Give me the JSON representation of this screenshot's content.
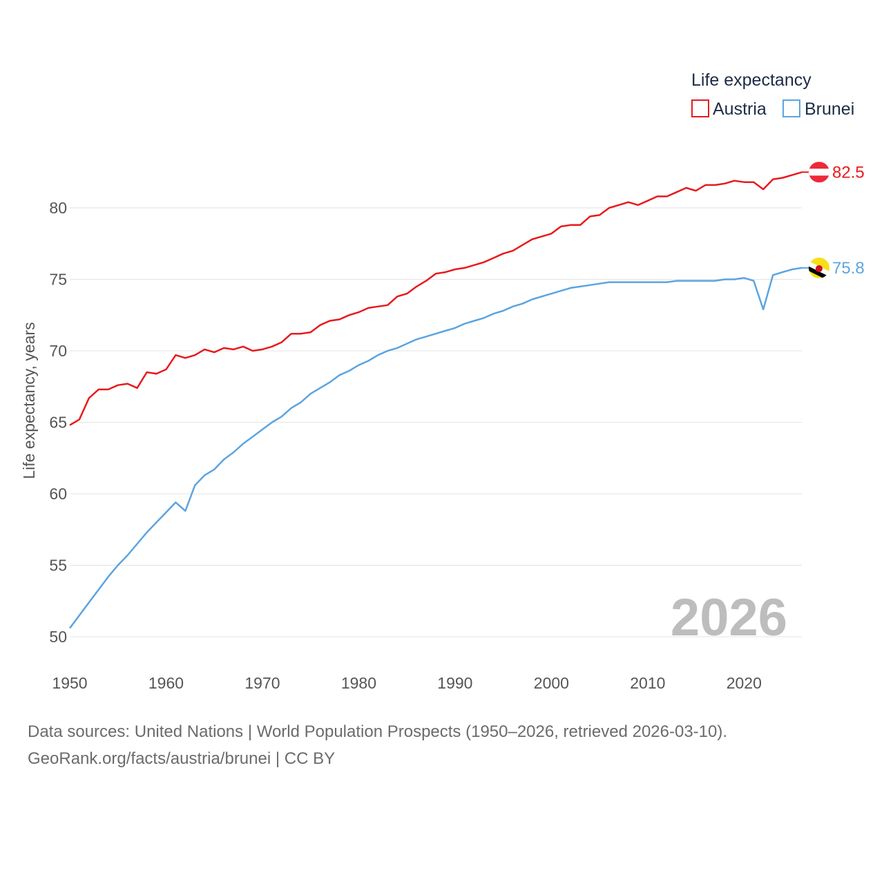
{
  "chart_data": {
    "type": "line",
    "title": "Life expectancy",
    "ylabel": "Life expectancy, years",
    "xlabel": "",
    "xlim": [
      1950,
      2026
    ],
    "ylim": [
      50,
      80
    ],
    "x_ticks": [
      1950,
      1960,
      1970,
      1980,
      1990,
      2000,
      2010,
      2020
    ],
    "y_ticks": [
      50,
      55,
      60,
      65,
      70,
      75,
      80
    ],
    "grid": true,
    "legend_position": "top-right",
    "current_year": "2026",
    "x": [
      1950,
      1951,
      1952,
      1953,
      1954,
      1955,
      1956,
      1957,
      1958,
      1959,
      1960,
      1961,
      1962,
      1963,
      1964,
      1965,
      1966,
      1967,
      1968,
      1969,
      1970,
      1971,
      1972,
      1973,
      1974,
      1975,
      1976,
      1977,
      1978,
      1979,
      1980,
      1981,
      1982,
      1983,
      1984,
      1985,
      1986,
      1987,
      1988,
      1989,
      1990,
      1991,
      1992,
      1993,
      1994,
      1995,
      1996,
      1997,
      1998,
      1999,
      2000,
      2001,
      2002,
      2003,
      2004,
      2005,
      2006,
      2007,
      2008,
      2009,
      2010,
      2011,
      2012,
      2013,
      2014,
      2015,
      2016,
      2017,
      2018,
      2019,
      2020,
      2021,
      2022,
      2023,
      2024,
      2025,
      2026
    ],
    "series": [
      {
        "name": "Austria",
        "color": "#e8191d",
        "end_label": "82.5",
        "flag": "austria-flag",
        "values": [
          64.8,
          65.2,
          66.7,
          67.3,
          67.3,
          67.6,
          67.7,
          67.4,
          68.5,
          68.4,
          68.7,
          69.7,
          69.5,
          69.7,
          70.1,
          69.9,
          70.2,
          70.1,
          70.3,
          70.0,
          70.1,
          70.3,
          70.6,
          71.2,
          71.2,
          71.3,
          71.8,
          72.1,
          72.2,
          72.5,
          72.7,
          73.0,
          73.1,
          73.2,
          73.8,
          74.0,
          74.5,
          74.9,
          75.4,
          75.5,
          75.7,
          75.8,
          76.0,
          76.2,
          76.5,
          76.8,
          77.0,
          77.4,
          77.8,
          78.0,
          78.2,
          78.7,
          78.8,
          78.8,
          79.4,
          79.5,
          80.0,
          80.2,
          80.4,
          80.2,
          80.5,
          80.8,
          80.8,
          81.1,
          81.4,
          81.2,
          81.6,
          81.6,
          81.7,
          81.9,
          81.8,
          81.8,
          81.3,
          82.0,
          82.1,
          82.3,
          82.5
        ]
      },
      {
        "name": "Brunei",
        "color": "#5ba4e0",
        "end_label": "75.8",
        "flag": "brunei-flag",
        "values": [
          50.6,
          51.5,
          52.4,
          53.3,
          54.2,
          55.0,
          55.7,
          56.5,
          57.3,
          58.0,
          58.7,
          59.4,
          58.8,
          60.6,
          61.3,
          61.7,
          62.4,
          62.9,
          63.5,
          64.0,
          64.5,
          65.0,
          65.4,
          66.0,
          66.4,
          67.0,
          67.4,
          67.8,
          68.3,
          68.6,
          69.0,
          69.3,
          69.7,
          70.0,
          70.2,
          70.5,
          70.8,
          71.0,
          71.2,
          71.4,
          71.6,
          71.9,
          72.1,
          72.3,
          72.6,
          72.8,
          73.1,
          73.3,
          73.6,
          73.8,
          74.0,
          74.2,
          74.4,
          74.5,
          74.6,
          74.7,
          74.8,
          74.8,
          74.8,
          74.8,
          74.8,
          74.8,
          74.8,
          74.9,
          74.9,
          74.9,
          74.9,
          74.9,
          75.0,
          75.0,
          75.1,
          74.9,
          72.9,
          75.3,
          75.5,
          75.7,
          75.8
        ]
      }
    ]
  },
  "footer": {
    "sources": "Data sources: United Nations | World Population Prospects (1950–2026, retrieved 2026-03-10).",
    "credit": "GeoRank.org/facts/austria/brunei | CC BY"
  }
}
